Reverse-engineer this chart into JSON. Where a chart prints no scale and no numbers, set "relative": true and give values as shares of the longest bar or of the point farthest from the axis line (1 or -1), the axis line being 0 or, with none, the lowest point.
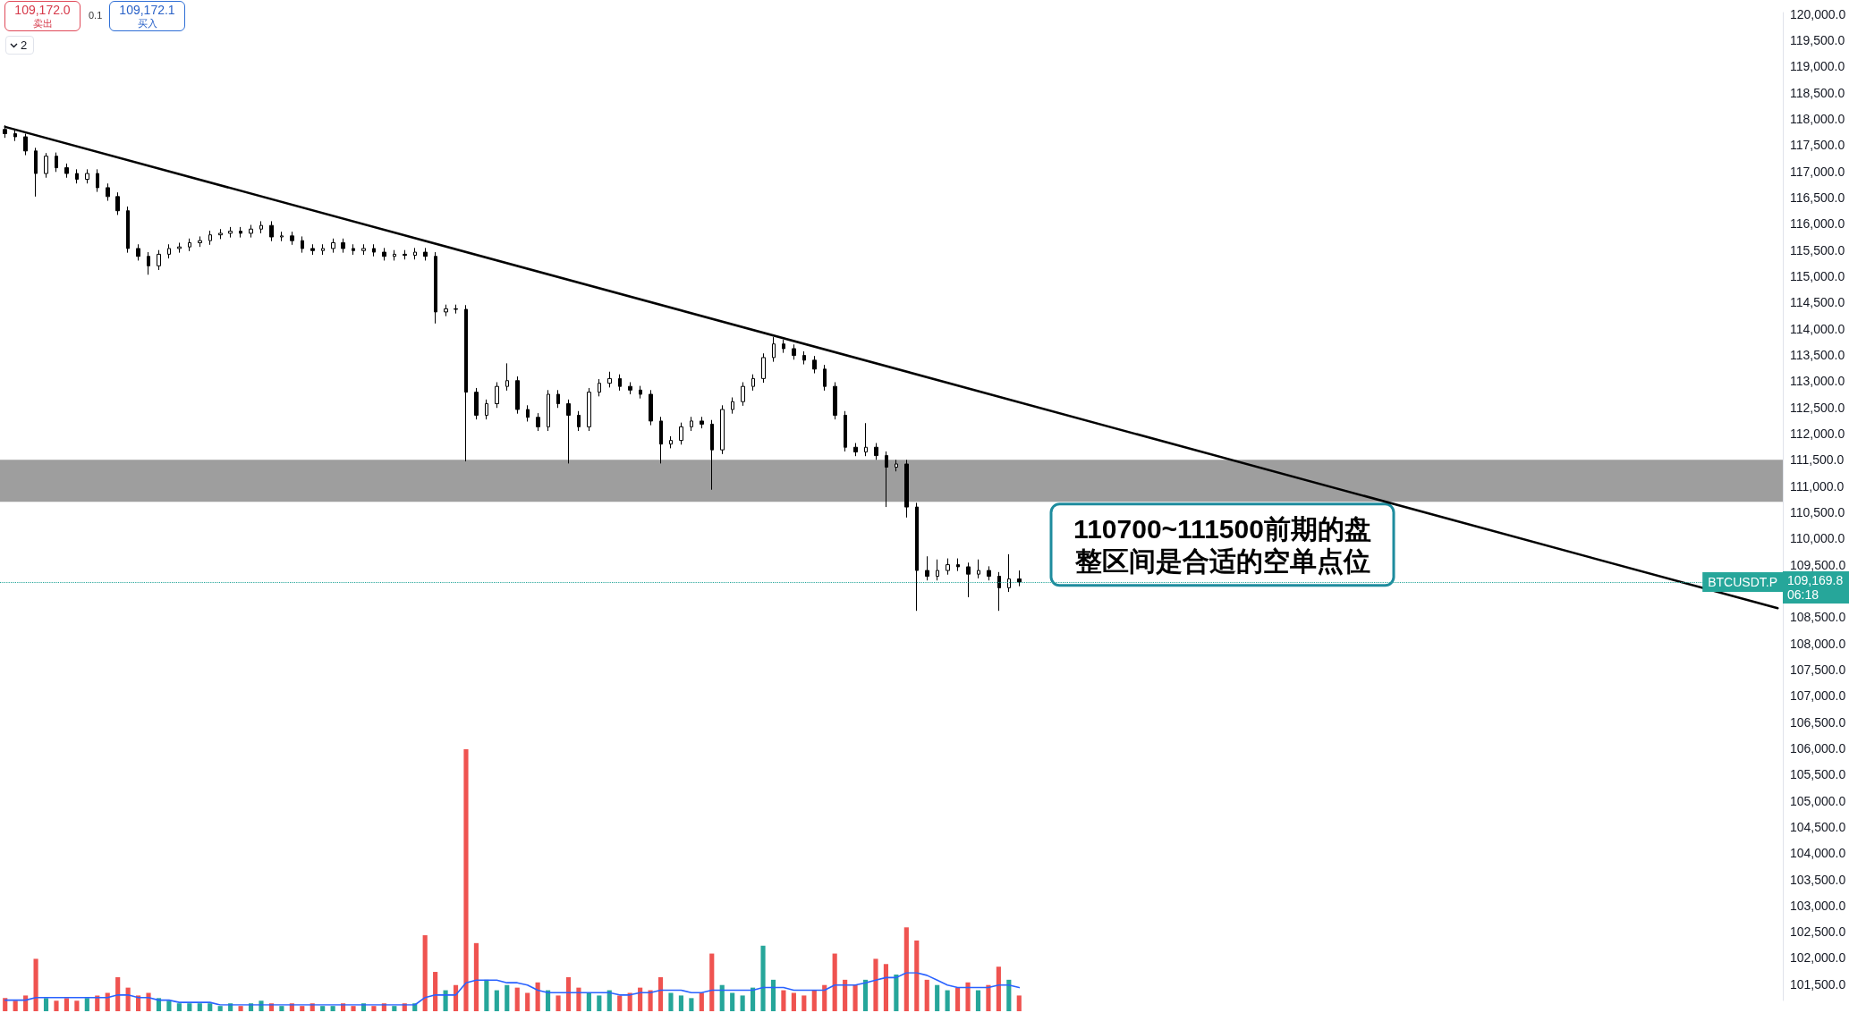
{
  "chart_data": [
    {
      "type": "candlestick",
      "categories": [
        null,
        null,
        null,
        null,
        null,
        null,
        null,
        null,
        null,
        null,
        null,
        null,
        null,
        null,
        null,
        null,
        null,
        null,
        null,
        null,
        null,
        null,
        null,
        null,
        null,
        null,
        null,
        null,
        null,
        null,
        null,
        null,
        null,
        null,
        null,
        null,
        null,
        null,
        null,
        null,
        null,
        null,
        null,
        null,
        null,
        null,
        null,
        null,
        null,
        null,
        null,
        null,
        null,
        null,
        null,
        null,
        null,
        null,
        null,
        null,
        null,
        null,
        null,
        null,
        null,
        null,
        null,
        null,
        null,
        null,
        null,
        null,
        null,
        null,
        null,
        null,
        null,
        null,
        null,
        null,
        null,
        null,
        null,
        null,
        null,
        null,
        null,
        null,
        null,
        null,
        null,
        null,
        null,
        null,
        null,
        null,
        null,
        null,
        null,
        null,
        null,
        null,
        null,
        null,
        null,
        null,
        null,
        null,
        null,
        null,
        null,
        null,
        null,
        null,
        null,
        null,
        null,
        null,
        null,
        null,
        null,
        null,
        null,
        null,
        null,
        null,
        null,
        null,
        null,
        null,
        null,
        null,
        null,
        null,
        null,
        null,
        null,
        null,
        null,
        null,
        null,
        null,
        null,
        null,
        null,
        null,
        null,
        null,
        null,
        null,
        null,
        null,
        null,
        null,
        null,
        null,
        null,
        null,
        null,
        null,
        null,
        null,
        null,
        null,
        null,
        null,
        null,
        null,
        null,
        null,
        null,
        null,
        null,
        null
      ],
      "series": [
        {
          "color": "#000000",
          "ohlc": [
            [
              117800,
              117880,
              117640,
              117720
            ],
            [
              117720,
              117780,
              117580,
              117660
            ],
            [
              117660,
              117720,
              117310,
              117390
            ],
            [
              117390,
              117450,
              116520,
              116960
            ],
            [
              116960,
              117350,
              116880,
              117290
            ],
            [
              117290,
              117360,
              116990,
              117070
            ],
            [
              117070,
              117150,
              116880,
              116960
            ],
            [
              116960,
              117040,
              116770,
              116850
            ],
            [
              116850,
              117040,
              116770,
              116960
            ],
            [
              116960,
              117040,
              116610,
              116690
            ],
            [
              116690,
              116770,
              116440,
              116520
            ],
            [
              116520,
              116600,
              116170,
              116250
            ],
            [
              116250,
              116330,
              115450,
              115530
            ],
            [
              115530,
              115610,
              115300,
              115380
            ],
            [
              115380,
              115460,
              115030,
              115200
            ],
            [
              115200,
              115500,
              115120,
              115420
            ],
            [
              115420,
              115610,
              115340,
              115530
            ],
            [
              115530,
              115640,
              115450,
              115560
            ],
            [
              115560,
              115720,
              115480,
              115640
            ],
            [
              115640,
              115760,
              115560,
              115680
            ],
            [
              115680,
              115870,
              115600,
              115790
            ],
            [
              115790,
              115900,
              115710,
              115820
            ],
            [
              115820,
              115940,
              115740,
              115860
            ],
            [
              115860,
              115940,
              115740,
              115820
            ],
            [
              115820,
              115980,
              115740,
              115900
            ],
            [
              115900,
              116050,
              115820,
              115970
            ],
            [
              115970,
              116050,
              115670,
              115750
            ],
            [
              115750,
              115850,
              115670,
              115770
            ],
            [
              115770,
              115850,
              115600,
              115680
            ],
            [
              115680,
              115760,
              115450,
              115530
            ],
            [
              115530,
              115610,
              115410,
              115490
            ],
            [
              115490,
              115610,
              115410,
              115530
            ],
            [
              115530,
              115720,
              115450,
              115640
            ],
            [
              115640,
              115720,
              115450,
              115530
            ],
            [
              115530,
              115610,
              115410,
              115490
            ],
            [
              115490,
              115610,
              115410,
              115530
            ],
            [
              115530,
              115610,
              115380,
              115460
            ],
            [
              115460,
              115540,
              115300,
              115380
            ],
            [
              115380,
              115500,
              115300,
              115420
            ],
            [
              115420,
              115500,
              115320,
              115400
            ],
            [
              115400,
              115540,
              115320,
              115460
            ],
            [
              115460,
              115540,
              115300,
              115380
            ],
            [
              115380,
              115460,
              114100,
              114320
            ],
            [
              114320,
              114460,
              114240,
              114380
            ],
            [
              114380,
              114460,
              114290,
              114370
            ],
            [
              114370,
              114450,
              111470,
              112790
            ],
            [
              112790,
              112870,
              112270,
              112350
            ],
            [
              112350,
              112650,
              112270,
              112570
            ],
            [
              112570,
              112980,
              112490,
              112900
            ],
            [
              112900,
              113340,
              112820,
              113010
            ],
            [
              113010,
              113090,
              112380,
              112460
            ],
            [
              112460,
              112540,
              112230,
              112310
            ],
            [
              112310,
              112390,
              112050,
              112130
            ],
            [
              112130,
              112830,
              112050,
              112750
            ],
            [
              112750,
              112830,
              112490,
              112570
            ],
            [
              112570,
              112650,
              111430,
              112350
            ],
            [
              112350,
              112430,
              112050,
              112130
            ],
            [
              112130,
              112870,
              112050,
              112790
            ],
            [
              112790,
              113040,
              112710,
              112960
            ],
            [
              112960,
              113180,
              112880,
              113050
            ],
            [
              113050,
              113130,
              112820,
              112900
            ],
            [
              112900,
              112980,
              112750,
              112830
            ],
            [
              112830,
              112910,
              112670,
              112750
            ],
            [
              112750,
              112830,
              112160,
              112240
            ],
            [
              112240,
              112320,
              111430,
              111800
            ],
            [
              111800,
              111950,
              111720,
              111870
            ],
            [
              111870,
              112210,
              111790,
              112130
            ],
            [
              112130,
              112320,
              112050,
              112240
            ],
            [
              112240,
              112320,
              112100,
              112180
            ],
            [
              112180,
              112260,
              110930,
              111690
            ],
            [
              111690,
              112540,
              111610,
              112460
            ],
            [
              112460,
              112690,
              112380,
              112610
            ],
            [
              112610,
              112980,
              112530,
              112900
            ],
            [
              112900,
              113130,
              112820,
              113050
            ],
            [
              113050,
              113530,
              112970,
              113450
            ],
            [
              113450,
              113840,
              113370,
              113710
            ],
            [
              113710,
              113790,
              113540,
              113620
            ],
            [
              113620,
              113700,
              113410,
              113490
            ],
            [
              113490,
              113570,
              113320,
              113400
            ],
            [
              113400,
              113480,
              113150,
              113230
            ],
            [
              113230,
              113310,
              112820,
              112900
            ],
            [
              112900,
              112980,
              112270,
              112350
            ],
            [
              112350,
              112430,
              111660,
              111740
            ],
            [
              111740,
              111820,
              111570,
              111650
            ],
            [
              111650,
              112200,
              111570,
              111740
            ],
            [
              111740,
              111820,
              111500,
              111580
            ],
            [
              111580,
              111660,
              110600,
              111360
            ],
            [
              111360,
              111500,
              111280,
              111420
            ],
            [
              111420,
              111500,
              110400,
              110600
            ],
            [
              110600,
              110680,
              108620,
              109390
            ],
            [
              109390,
              109660,
              109200,
              109280
            ],
            [
              109280,
              109600,
              109200,
              109390
            ],
            [
              109390,
              109620,
              109310,
              109500
            ],
            [
              109500,
              109620,
              109380,
              109460
            ],
            [
              109460,
              109540,
              108880,
              109320
            ],
            [
              109320,
              109600,
              109240,
              109390
            ],
            [
              109390,
              109470,
              109200,
              109280
            ],
            [
              109280,
              109360,
              108620,
              109060
            ],
            [
              109060,
              109700,
              108980,
              109230
            ],
            [
              109230,
              109390,
              109090,
              109170
            ],
            null,
            null,
            null,
            null,
            null,
            null,
            null,
            null,
            null,
            null,
            null,
            null,
            null,
            null,
            null,
            null,
            null,
            null,
            null,
            null,
            null,
            null,
            null,
            null,
            null,
            null,
            null,
            null,
            null,
            null,
            null,
            null,
            null,
            null,
            null,
            null,
            null,
            null,
            null,
            null,
            null,
            null,
            null,
            null,
            null,
            null,
            null,
            null,
            null,
            null,
            null,
            null,
            null,
            null,
            null,
            null,
            null,
            null,
            null,
            null,
            null,
            null,
            null,
            null,
            null,
            null,
            null,
            null,
            null,
            null,
            null,
            null,
            null,
            null
          ]
        },
        {
          "type": "line",
          "color": "#000000",
          "values": [
            117850,
            null,
            null,
            null,
            null,
            null,
            null,
            null,
            null,
            null,
            null,
            null,
            null,
            null,
            null,
            null,
            null,
            null,
            null,
            null,
            null,
            null,
            null,
            null,
            null,
            null,
            null,
            null,
            null,
            null,
            null,
            null,
            null,
            null,
            null,
            null,
            null,
            null,
            null,
            null,
            null,
            null,
            null,
            null,
            null,
            null,
            null,
            null,
            null,
            null,
            null,
            null,
            null,
            null,
            null,
            null,
            null,
            null,
            null,
            null,
            null,
            null,
            null,
            null,
            null,
            null,
            null,
            null,
            null,
            null,
            null,
            null,
            null,
            null,
            null,
            null,
            null,
            null,
            null,
            null,
            null,
            null,
            null,
            null,
            null,
            null,
            null,
            null,
            null,
            null,
            null,
            null,
            null,
            null,
            null,
            null,
            null,
            null,
            null,
            null,
            null,
            null,
            null,
            null,
            null,
            null,
            null,
            null,
            null,
            null,
            null,
            null,
            null,
            null,
            null,
            null,
            null,
            null,
            null,
            null,
            null,
            null,
            null,
            null,
            null,
            null,
            null,
            null,
            null,
            null,
            null,
            null,
            null,
            null,
            null,
            null,
            null,
            null,
            null,
            null,
            null,
            null,
            null,
            null,
            null,
            null,
            null,
            null,
            null,
            null,
            null,
            null,
            null,
            null,
            null,
            null,
            null,
            null,
            null,
            null,
            null,
            null,
            null,
            null,
            null,
            null,
            null,
            null,
            null,
            null,
            null,
            null,
            null,
            108670
          ]
        }
      ],
      "ylim": [
        101190,
        120030
      ],
      "yticks": [
        {
          "value": 101500,
          "label": "101,500.0"
        },
        {
          "value": 102000,
          "label": "102,000.0"
        },
        {
          "value": 102500,
          "label": "102,500.0"
        },
        {
          "value": 103000,
          "label": "103,000.0"
        },
        {
          "value": 103500,
          "label": "103,500.0"
        },
        {
          "value": 104000,
          "label": "104,000.0"
        },
        {
          "value": 104500,
          "label": "104,500.0"
        },
        {
          "value": 105000,
          "label": "105,000.0"
        },
        {
          "value": 105500,
          "label": "105,500.0"
        },
        {
          "value": 106000,
          "label": "106,000.0"
        },
        {
          "value": 106500,
          "label": "106,500.0"
        },
        {
          "value": 107000,
          "label": "107,000.0"
        },
        {
          "value": 107500,
          "label": "107,500.0"
        },
        {
          "value": 108000,
          "label": "108,000.0"
        },
        {
          "value": 108500,
          "label": "108,500.0"
        },
        {
          "value": 109500,
          "label": "109,500.0"
        },
        {
          "value": 110000,
          "label": "110,000.0"
        },
        {
          "value": 110500,
          "label": "110,500.0"
        },
        {
          "value": 111000,
          "label": "111,000.0"
        },
        {
          "value": 111500,
          "label": "111,500.0"
        },
        {
          "value": 112000,
          "label": "112,000.0"
        },
        {
          "value": 112500,
          "label": "112,500.0"
        },
        {
          "value": 113000,
          "label": "113,000.0"
        },
        {
          "value": 113500,
          "label": "113,500.0"
        },
        {
          "value": 114000,
          "label": "114,000.0"
        },
        {
          "value": 114500,
          "label": "114,500.0"
        },
        {
          "value": 115000,
          "label": "115,000.0"
        },
        {
          "value": 115500,
          "label": "115,500.0"
        },
        {
          "value": 116000,
          "label": "116,000.0"
        },
        {
          "value": 116500,
          "label": "116,500.0"
        },
        {
          "value": 117000,
          "label": "117,000.0"
        },
        {
          "value": 117500,
          "label": "117,500.0"
        },
        {
          "value": 118000,
          "label": "118,000.0"
        },
        {
          "value": 118500,
          "label": "118,500.0"
        },
        {
          "value": 119000,
          "label": "119,000.0"
        },
        {
          "value": 119500,
          "label": "119,500.0"
        },
        {
          "value": 120000,
          "label": "120,000.0"
        }
      ],
      "tick_labels": "y",
      "ref_lines": [
        {
          "axis": "y",
          "value": 109169.8,
          "label": "BTCUSDT.P",
          "color": "#26a69a",
          "line_style": "dotted"
        }
      ],
      "bands": [
        {
          "axis": "y",
          "from": 110700,
          "to": 111500,
          "label": "110700~111500前期的盘整区间是合适的空单点位",
          "color": "#9e9e9e"
        }
      ],
      "annotations": [
        "109,172.0",
        "卖出",
        "0.1",
        "109,172.1",
        "买入",
        "2",
        "109,169.8",
        "06:18"
      ]
    },
    {
      "type": "bar",
      "relative": true,
      "categories": [
        null,
        null,
        null,
        null,
        null,
        null,
        null,
        null,
        null,
        null,
        null,
        null,
        null,
        null,
        null,
        null,
        null,
        null,
        null,
        null,
        null,
        null,
        null,
        null,
        null,
        null,
        null,
        null,
        null,
        null,
        null,
        null,
        null,
        null,
        null,
        null,
        null,
        null,
        null,
        null,
        null,
        null,
        null,
        null,
        null,
        null,
        null,
        null,
        null,
        null,
        null,
        null,
        null,
        null,
        null,
        null,
        null,
        null,
        null,
        null,
        null,
        null,
        null,
        null,
        null,
        null,
        null,
        null,
        null,
        null,
        null,
        null,
        null,
        null,
        null,
        null,
        null,
        null,
        null,
        null,
        null,
        null,
        null,
        null,
        null,
        null,
        null,
        null,
        null,
        null,
        null,
        null,
        null,
        null,
        null,
        null,
        null,
        null,
        null,
        null
      ],
      "series": [
        {
          "colors": [
            "#ef5350",
            "#ef5350",
            "#ef5350",
            "#ef5350",
            "#26a69a",
            "#ef5350",
            "#ef5350",
            "#ef5350",
            "#26a69a",
            "#ef5350",
            "#ef5350",
            "#ef5350",
            "#ef5350",
            "#ef5350",
            "#ef5350",
            "#26a69a",
            "#26a69a",
            "#26a69a",
            "#26a69a",
            "#26a69a",
            "#26a69a",
            "#26a69a",
            "#26a69a",
            "#ef5350",
            "#26a69a",
            "#26a69a",
            "#ef5350",
            "#26a69a",
            "#ef5350",
            "#ef5350",
            "#ef5350",
            "#26a69a",
            "#26a69a",
            "#ef5350",
            "#ef5350",
            "#26a69a",
            "#ef5350",
            "#ef5350",
            "#26a69a",
            "#ef5350",
            "#26a69a",
            "#ef5350",
            "#ef5350",
            "#26a69a",
            "#ef5350",
            "#ef5350",
            "#ef5350",
            "#26a69a",
            "#26a69a",
            "#26a69a",
            "#ef5350",
            "#ef5350",
            "#ef5350",
            "#26a69a",
            "#ef5350",
            "#ef5350",
            "#ef5350",
            "#26a69a",
            "#26a69a",
            "#26a69a",
            "#ef5350",
            "#ef5350",
            "#ef5350",
            "#ef5350",
            "#ef5350",
            "#26a69a",
            "#26a69a",
            "#26a69a",
            "#ef5350",
            "#ef5350",
            "#26a69a",
            "#26a69a",
            "#26a69a",
            "#26a69a",
            "#26a69a",
            "#26a69a",
            "#ef5350",
            "#ef5350",
            "#ef5350",
            "#ef5350",
            "#ef5350",
            "#ef5350",
            "#ef5350",
            "#ef5350",
            "#26a69a",
            "#ef5350",
            "#ef5350",
            "#26a69a",
            "#ef5350",
            "#ef5350",
            "#ef5350",
            "#26a69a",
            "#26a69a",
            "#ef5350",
            "#ef5350",
            "#26a69a",
            "#ef5350",
            "#ef5350",
            "#26a69a",
            "#ef5350"
          ],
          "values": [
            0.05,
            0.04,
            0.06,
            0.2,
            0.05,
            0.04,
            0.05,
            0.04,
            0.05,
            0.06,
            0.07,
            0.13,
            0.09,
            0.06,
            0.07,
            0.05,
            0.04,
            0.03,
            0.03,
            0.03,
            0.03,
            0.02,
            0.03,
            0.02,
            0.03,
            0.04,
            0.03,
            0.02,
            0.03,
            0.02,
            0.03,
            0.02,
            0.02,
            0.03,
            0.02,
            0.03,
            0.02,
            0.03,
            0.02,
            0.03,
            0.03,
            0.29,
            0.15,
            0.08,
            0.1,
            1,
            0.26,
            0.12,
            0.08,
            0.1,
            0.09,
            0.07,
            0.11,
            0.08,
            0.06,
            0.13,
            0.09,
            0.07,
            0.06,
            0.08,
            0.06,
            0.07,
            0.09,
            0.08,
            0.13,
            0.07,
            0.06,
            0.05,
            0.07,
            0.22,
            0.1,
            0.07,
            0.06,
            0.09,
            0.25,
            0.12,
            0.08,
            0.07,
            0.06,
            0.08,
            0.1,
            0.22,
            0.12,
            0.1,
            0.12,
            0.2,
            0.18,
            0.14,
            0.32,
            0.27,
            0.12,
            0.1,
            0.08,
            0.09,
            0.11,
            0.08,
            0.1,
            0.17,
            0.12,
            0.06
          ]
        }
      ],
      "tick_labels": false
    },
    {
      "type": "line",
      "relative": true,
      "categories": [
        null,
        null,
        null,
        null,
        null,
        null,
        null,
        null,
        null,
        null,
        null,
        null,
        null,
        null,
        null,
        null,
        null,
        null,
        null,
        null,
        null,
        null,
        null,
        null,
        null,
        null,
        null,
        null,
        null,
        null,
        null,
        null,
        null,
        null,
        null,
        null,
        null,
        null,
        null,
        null,
        null,
        null,
        null,
        null,
        null,
        null,
        null,
        null,
        null,
        null,
        null,
        null,
        null,
        null,
        null,
        null,
        null,
        null,
        null,
        null,
        null,
        null,
        null,
        null,
        null,
        null,
        null,
        null,
        null,
        null,
        null,
        null,
        null,
        null,
        null,
        null,
        null,
        null,
        null,
        null,
        null,
        null,
        null,
        null,
        null,
        null,
        null,
        null,
        null,
        null,
        null,
        null,
        null,
        null,
        null,
        null,
        null,
        null,
        null,
        null
      ],
      "series": [
        {
          "color": "#2962ff",
          "values": [
            0.15,
            0.15,
            0.15,
            0.23,
            0.23,
            0.23,
            0.23,
            0.23,
            0.23,
            0.23,
            0.23,
            0.31,
            0.31,
            0.23,
            0.23,
            0.15,
            0.15,
            0.08,
            0.08,
            0.08,
            0.08,
            0,
            0,
            0,
            0,
            0,
            0,
            0,
            0,
            0,
            0,
            0,
            0,
            0,
            0,
            0,
            0,
            0,
            0,
            0,
            0,
            0.23,
            0.31,
            0.31,
            0.31,
            0.69,
            0.77,
            0.77,
            0.77,
            0.69,
            0.69,
            0.62,
            0.46,
            0.38,
            0.38,
            0.38,
            0.38,
            0.38,
            0.38,
            0.38,
            0.31,
            0.31,
            0.38,
            0.38,
            0.46,
            0.46,
            0.46,
            0.38,
            0.38,
            0.46,
            0.46,
            0.46,
            0.46,
            0.46,
            0.54,
            0.54,
            0.54,
            0.46,
            0.46,
            0.46,
            0.46,
            0.62,
            0.62,
            0.62,
            0.69,
            0.77,
            0.85,
            0.85,
            1,
            1,
            0.92,
            0.77,
            0.62,
            0.54,
            0.54,
            0.54,
            0.54,
            0.62,
            0.62,
            0.54
          ]
        }
      ],
      "tick_labels": false
    }
  ]
}
